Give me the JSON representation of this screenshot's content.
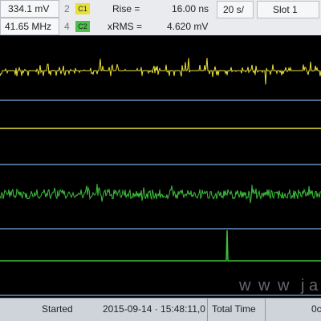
{
  "header": {
    "row1": {
      "value": "334.1 mV",
      "channel": "2",
      "badge": "C1",
      "measure": "Rise =",
      "result": "16.00 ns",
      "timebase": "20 s/",
      "slot": "Slot 1"
    },
    "row2": {
      "value": "41.65 MHz",
      "channel": "4",
      "badge": "C2",
      "measure": "xRMS =",
      "result": "4.620 mV"
    }
  },
  "watermark": {
    "left": "w w w",
    "right": "j a"
  },
  "footer": {
    "status": "Started",
    "timestamp": "2015-09-14 · 15:48:11,0",
    "label": "Total Time",
    "value": "0c"
  }
}
